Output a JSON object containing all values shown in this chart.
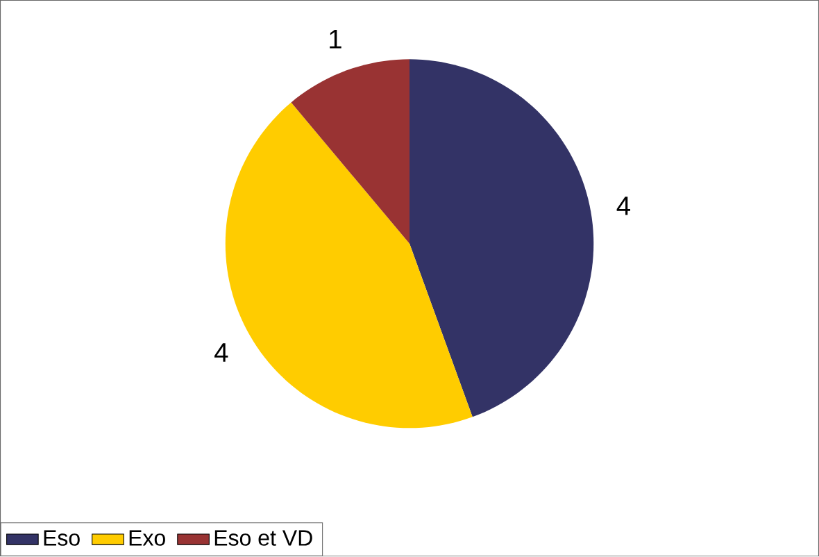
{
  "chart_data": {
    "type": "pie",
    "categories": [
      "Eso",
      "Exo",
      "Eso et VD"
    ],
    "values": [
      4,
      4,
      1
    ],
    "colors": [
      "#333366",
      "#ffcc00",
      "#993333"
    ],
    "data_labels": true,
    "legend": "bottom left"
  }
}
